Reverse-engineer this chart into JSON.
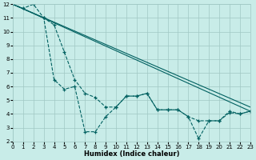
{
  "xlabel": "Humidex (Indice chaleur)",
  "xlim": [
    0,
    23
  ],
  "ylim": [
    2,
    12
  ],
  "xticks": [
    0,
    1,
    2,
    3,
    4,
    5,
    6,
    7,
    8,
    9,
    10,
    11,
    12,
    13,
    14,
    15,
    16,
    17,
    18,
    19,
    20,
    21,
    22,
    23
  ],
  "yticks": [
    2,
    3,
    4,
    5,
    6,
    7,
    8,
    9,
    10,
    11,
    12
  ],
  "bg_color": "#c8ece8",
  "grid_color": "#a0c8c4",
  "line_color": "#006060",
  "series": [
    {
      "x": [
        0,
        23
      ],
      "y": [
        12,
        4.2
      ],
      "marker": false,
      "dashed": false
    },
    {
      "x": [
        0,
        23
      ],
      "y": [
        12,
        4.5
      ],
      "marker": false,
      "dashed": false
    },
    {
      "comment": "line3: marker line - goes 0,12 -> 1,11.7 -> 2,12 -> 3,11 -> 4,6.5 -> 5,5.8 -> 6,6.0 -> 7,2.7 -> 8,2.7 -> 9,3.8 -> 10,4.5 -> 11,5.3 -> 12,5.3 -> 13,5.5 -> 14,4.3 -> 15,4.3 -> 16,4.3 -> 17,3.8 -> 18,2.2 -> 19,3.5 -> 20,3.5 -> 21,4.2 -> 22,4.0 -> 23,4.2",
      "x": [
        0,
        1,
        2,
        3,
        4,
        5,
        6,
        7,
        8,
        9,
        10,
        11,
        12,
        13,
        14,
        15,
        16,
        17,
        18,
        19,
        20,
        21,
        22,
        23
      ],
      "y": [
        12,
        11.7,
        12,
        11,
        6.5,
        5.8,
        6.0,
        2.7,
        2.7,
        3.8,
        4.5,
        5.3,
        5.3,
        5.5,
        4.3,
        4.3,
        4.3,
        3.8,
        2.2,
        3.5,
        3.5,
        4.2,
        4.0,
        4.2
      ],
      "marker": true,
      "dashed": true
    },
    {
      "x": [
        0,
        3,
        4,
        5,
        6,
        7,
        8,
        9,
        10,
        11,
        12,
        13,
        14,
        15,
        16,
        17,
        18,
        19,
        20,
        21,
        22,
        23
      ],
      "y": [
        12,
        11,
        10.5,
        8.5,
        6.5,
        5.5,
        5.2,
        4.5,
        4.5,
        5.3,
        5.3,
        5.5,
        4.3,
        4.3,
        4.3,
        3.8,
        3.5,
        3.5,
        3.5,
        4.1,
        4.0,
        4.2
      ],
      "marker": true,
      "dashed": true
    }
  ]
}
